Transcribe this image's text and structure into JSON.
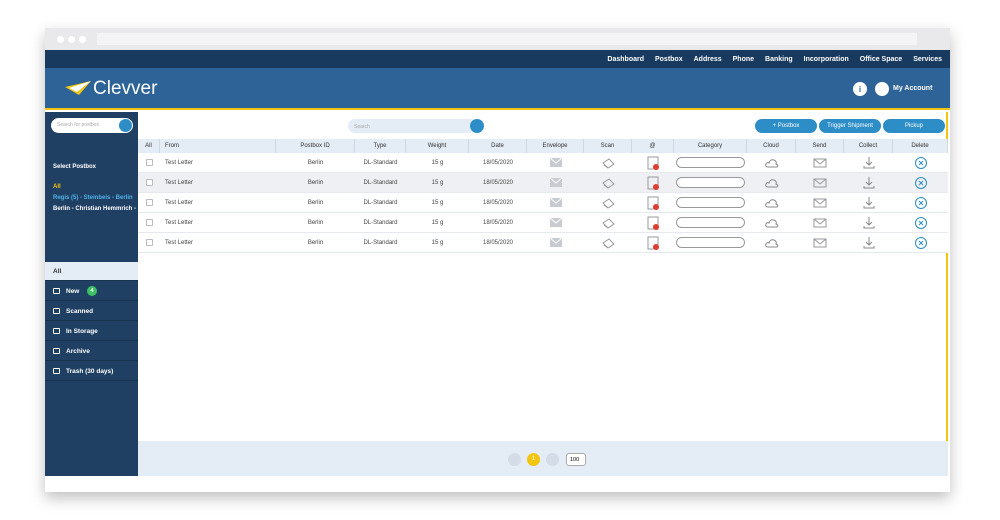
{
  "nav": [
    "Dashboard",
    "Postbox",
    "Address",
    "Phone",
    "Banking",
    "Incorporation",
    "Office Space",
    "Services"
  ],
  "header": {
    "brand": "Clevver",
    "info_icon": "i",
    "account": "My Account"
  },
  "sidebar": {
    "search_placeholder": "Search for postbox",
    "select_label": "Select Postbox",
    "postboxes": [
      "All",
      "Regis (5) - Steinbeis - Berlin",
      "Berlin - Christian Hemmrich -"
    ],
    "menu": [
      {
        "label": "All"
      },
      {
        "label": "New",
        "badge": 4
      },
      {
        "label": "Scanned"
      },
      {
        "label": "In Storage"
      },
      {
        "label": "Archive"
      },
      {
        "label": "Trash (30 days)"
      }
    ]
  },
  "toolbar": {
    "search_placeholder": "Search",
    "buttons": [
      "+ Postbox",
      "Trigger Shipment",
      "Pickup"
    ]
  },
  "table": {
    "columns": [
      "All",
      "From",
      "Postbox ID",
      "Type",
      "Weight",
      "Date",
      "Envelope",
      "Scan",
      "@",
      "Category",
      "Cloud",
      "Send",
      "Collect",
      "Delete"
    ],
    "rows": [
      {
        "from": "Test Letter",
        "postbox": "Berlin",
        "type": "DL-Standard",
        "weight": "15 g",
        "date": "18/05/2020"
      },
      {
        "from": "Test Letter",
        "postbox": "Berlin",
        "type": "DL-Standard",
        "weight": "15 g",
        "date": "18/05/2020"
      },
      {
        "from": "Test Letter",
        "postbox": "Berlin",
        "type": "DL-Standard",
        "weight": "15 g",
        "date": "18/05/2020"
      },
      {
        "from": "Test Letter",
        "postbox": "Berlin",
        "type": "DL-Standard",
        "weight": "15 g",
        "date": "18/05/2020"
      },
      {
        "from": "Test Letter",
        "postbox": "Berlin",
        "type": "DL-Standard",
        "weight": "15 g",
        "date": "18/05/2020"
      }
    ]
  },
  "pagination": {
    "current_page": 1,
    "page_size": "100"
  }
}
